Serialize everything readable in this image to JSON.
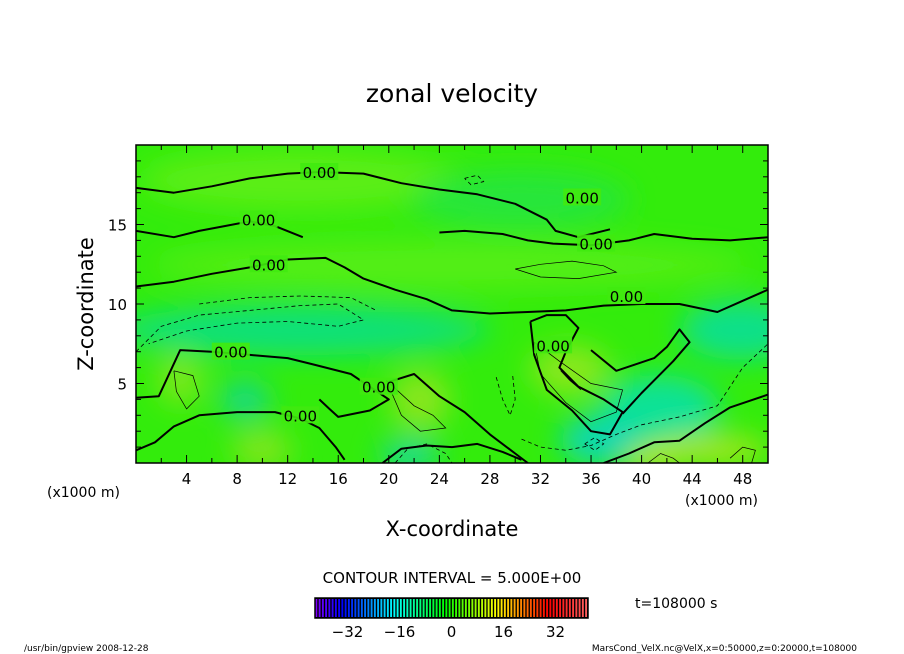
{
  "chart_data": {
    "type": "heatmap",
    "subtype": "contour",
    "title": "zonal velocity",
    "xlabel": "X-coordinate",
    "ylabel": "Z-coordinate",
    "x_unit_label": "(x1000 m)",
    "y_unit_label": "(x1000 m)",
    "xlim": [
      0,
      50
    ],
    "ylim": [
      0,
      20
    ],
    "xticks": [
      4,
      8,
      12,
      16,
      20,
      24,
      28,
      32,
      36,
      40,
      44,
      48
    ],
    "yticks": [
      5,
      10,
      15
    ],
    "contour_interval_text": "CONTOUR INTERVAL = 5.000E+00",
    "contour_label": "0.00",
    "colorbar": {
      "range": [
        -42,
        42
      ],
      "ticks": [
        -32,
        -16,
        0,
        16,
        32
      ],
      "time_label": "t=108000 s"
    },
    "zero_contours": [
      [
        [
          0,
          17.3
        ],
        [
          3,
          17.0
        ],
        [
          6,
          17.4
        ],
        [
          9,
          17.9
        ],
        [
          12,
          18.2
        ],
        [
          14.5,
          18.3
        ],
        [
          18,
          18.2
        ],
        [
          21,
          17.6
        ],
        [
          24,
          17.2
        ],
        [
          27,
          16.9
        ],
        [
          30,
          16.3
        ],
        [
          32.5,
          15.3
        ],
        [
          33.2,
          14.6
        ],
        [
          35,
          14.2
        ],
        [
          37.5,
          14.7
        ]
      ],
      [
        [
          0,
          14.6
        ],
        [
          3,
          14.2
        ],
        [
          5,
          14.6
        ],
        [
          7,
          14.9
        ],
        [
          9,
          15.2
        ],
        [
          11,
          14.9
        ],
        [
          13.2,
          14.2
        ]
      ],
      [
        [
          0,
          11.1
        ],
        [
          3,
          11.4
        ],
        [
          6,
          11.9
        ],
        [
          9,
          12.3
        ],
        [
          12,
          12.8
        ],
        [
          15,
          12.9
        ],
        [
          16.5,
          12.3
        ],
        [
          18,
          11.6
        ],
        [
          20.5,
          10.9
        ],
        [
          23,
          10.3
        ],
        [
          25,
          9.6
        ],
        [
          28,
          9.4
        ],
        [
          31,
          9.5
        ],
        [
          34,
          9.6
        ],
        [
          37,
          9.9
        ],
        [
          40,
          10.0
        ],
        [
          43,
          10.0
        ],
        [
          46,
          9.5
        ],
        [
          48,
          10.2
        ],
        [
          50,
          10.9
        ]
      ],
      [
        [
          24,
          14.5
        ],
        [
          26,
          14.6
        ],
        [
          29,
          14.4
        ],
        [
          31,
          14.0
        ],
        [
          33,
          13.8
        ],
        [
          36,
          13.7
        ],
        [
          39,
          14.0
        ],
        [
          41,
          14.4
        ],
        [
          44,
          14.1
        ],
        [
          47,
          14.0
        ],
        [
          50,
          14.2
        ]
      ],
      [
        [
          0,
          4.1
        ],
        [
          1.8,
          4.2
        ],
        [
          3.5,
          7.1
        ],
        [
          6,
          7.0
        ],
        [
          9,
          6.8
        ],
        [
          12,
          6.6
        ],
        [
          14,
          6.2
        ],
        [
          17,
          5.6
        ],
        [
          18.5,
          4.8
        ],
        [
          20,
          4.0
        ],
        [
          18.5,
          3.3
        ],
        [
          16,
          2.9
        ],
        [
          15.3,
          3.4
        ],
        [
          14.5,
          4.0
        ]
      ],
      [
        [
          0,
          0.8
        ],
        [
          1.5,
          1.3
        ],
        [
          3,
          2.3
        ],
        [
          5,
          3.0
        ],
        [
          8,
          3.2
        ],
        [
          11,
          3.2
        ],
        [
          13,
          2.8
        ],
        [
          14.5,
          2.2
        ],
        [
          15.8,
          1.0
        ],
        [
          16.5,
          0.2
        ]
      ],
      [
        [
          19.5,
          0
        ],
        [
          21,
          0.9
        ],
        [
          23,
          1.1
        ],
        [
          25,
          1.0
        ],
        [
          27,
          1.2
        ],
        [
          29,
          0.7
        ],
        [
          30.5,
          0.2
        ]
      ],
      [
        [
          20,
          5.1
        ],
        [
          22,
          5.6
        ],
        [
          24,
          4.2
        ],
        [
          26,
          3.2
        ],
        [
          28,
          1.8
        ],
        [
          30,
          0.6
        ],
        [
          31,
          0
        ]
      ],
      [
        [
          31.2,
          8.9
        ],
        [
          32.5,
          9.3
        ],
        [
          34,
          9.3
        ],
        [
          35,
          8.5
        ],
        [
          34,
          7.0
        ],
        [
          33.5,
          6.0
        ],
        [
          35,
          4.8
        ],
        [
          37,
          4.0
        ],
        [
          38.5,
          3.2
        ],
        [
          37.5,
          1.8
        ],
        [
          36,
          2.0
        ],
        [
          34.5,
          3.3
        ],
        [
          32.5,
          4.6
        ],
        [
          31.5,
          6.8
        ],
        [
          31.2,
          8.9
        ]
      ],
      [
        [
          36,
          7.1
        ],
        [
          38,
          5.8
        ],
        [
          39.5,
          6.2
        ],
        [
          41,
          6.6
        ],
        [
          42,
          7.3
        ],
        [
          43,
          8.4
        ],
        [
          43.8,
          7.6
        ],
        [
          42.5,
          6.4
        ],
        [
          40,
          4.4
        ],
        [
          38.5,
          3.1
        ]
      ],
      [
        [
          37,
          0
        ],
        [
          39,
          0.6
        ],
        [
          41,
          1.3
        ],
        [
          43,
          1.4
        ],
        [
          45,
          2.5
        ],
        [
          47,
          3.5
        ],
        [
          50,
          4.3
        ]
      ]
    ],
    "positive_contours": [
      [
        [
          3,
          5.8
        ],
        [
          4.5,
          5.5
        ],
        [
          5,
          4.2
        ],
        [
          4,
          3.4
        ],
        [
          3.2,
          4.5
        ],
        [
          3,
          5.8
        ]
      ],
      [
        [
          33.6,
          5.8
        ],
        [
          34.5,
          5.1
        ],
        [
          35.2,
          4.6
        ],
        [
          34.3,
          5.2
        ],
        [
          33.6,
          5.8
        ]
      ],
      [
        [
          31.5,
          7.6
        ],
        [
          33.5,
          6.4
        ],
        [
          36,
          5.0
        ],
        [
          38.5,
          4.6
        ],
        [
          38,
          3.2
        ],
        [
          36,
          2.6
        ],
        [
          34,
          3.8
        ],
        [
          32,
          5.6
        ],
        [
          31.5,
          7.6
        ]
      ],
      [
        [
          19.8,
          5.2
        ],
        [
          22,
          3.6
        ],
        [
          23.5,
          3.0
        ],
        [
          24.5,
          2.2
        ],
        [
          22.5,
          2.0
        ],
        [
          21,
          3.0
        ],
        [
          19.8,
          5.2
        ]
      ],
      [
        [
          30,
          12.2
        ],
        [
          32,
          12.5
        ],
        [
          34.5,
          12.7
        ],
        [
          37,
          12.4
        ],
        [
          38,
          12.0
        ],
        [
          35,
          11.6
        ],
        [
          32,
          11.7
        ],
        [
          30,
          12.2
        ]
      ],
      [
        [
          40.5,
          0
        ],
        [
          41.5,
          0.6
        ],
        [
          42.5,
          0.3
        ],
        [
          43,
          0
        ]
      ],
      [
        [
          47,
          0.3
        ],
        [
          48,
          1.0
        ],
        [
          49,
          0.8
        ],
        [
          48.7,
          0
        ]
      ]
    ],
    "negative_contours": [
      [
        [
          0,
          7.0
        ],
        [
          2,
          8.6
        ],
        [
          5,
          9.3
        ],
        [
          9,
          9.6
        ],
        [
          13,
          9.9
        ],
        [
          16,
          10.0
        ],
        [
          18,
          9.0
        ],
        [
          16,
          8.6
        ],
        [
          12,
          8.9
        ],
        [
          8,
          8.8
        ],
        [
          4,
          8.3
        ],
        [
          1,
          7.5
        ]
      ],
      [
        [
          5,
          10.0
        ],
        [
          9,
          10.4
        ],
        [
          13,
          10.5
        ],
        [
          17,
          10.4
        ],
        [
          19,
          9.6
        ]
      ],
      [
        [
          28.5,
          5.4
        ],
        [
          29,
          4.0
        ],
        [
          29.6,
          3.0
        ],
        [
          30,
          4.0
        ],
        [
          29.8,
          5.5
        ]
      ],
      [
        [
          30.5,
          1.5
        ],
        [
          32,
          1.0
        ],
        [
          34,
          0.8
        ],
        [
          36,
          1.1
        ],
        [
          38,
          1.8
        ],
        [
          40,
          2.4
        ],
        [
          43,
          2.9
        ],
        [
          46,
          3.6
        ],
        [
          48,
          6.0
        ],
        [
          50,
          7.5
        ]
      ],
      [
        [
          35.5,
          1.2
        ],
        [
          36.3,
          1.6
        ],
        [
          37,
          1.2
        ],
        [
          36.3,
          0.8
        ],
        [
          35.5,
          1.2
        ]
      ],
      [
        [
          20.5,
          0
        ],
        [
          21.5,
          0.9
        ],
        [
          23,
          1.2
        ],
        [
          24.5,
          0.6
        ],
        [
          25,
          0
        ]
      ],
      [
        [
          26,
          17.9
        ],
        [
          27,
          18.1
        ],
        [
          27.5,
          17.7
        ],
        [
          26.5,
          17.5
        ],
        [
          26,
          17.9
        ]
      ]
    ],
    "label_positions": [
      [
        14.5,
        18.3
      ],
      [
        9.7,
        15.3
      ],
      [
        10.5,
        12.5
      ],
      [
        36.4,
        13.8
      ],
      [
        35.3,
        16.7
      ],
      [
        38.8,
        10.5
      ],
      [
        7.5,
        7.0
      ],
      [
        13,
        3.0
      ],
      [
        19.2,
        4.8
      ],
      [
        33,
        7.4
      ]
    ]
  },
  "footer": {
    "left": "/usr/bin/gpview  2008-12-28",
    "right": "MarsCond_VelX.nc@VelX,x=0:50000,z=0:20000,t=108000"
  }
}
